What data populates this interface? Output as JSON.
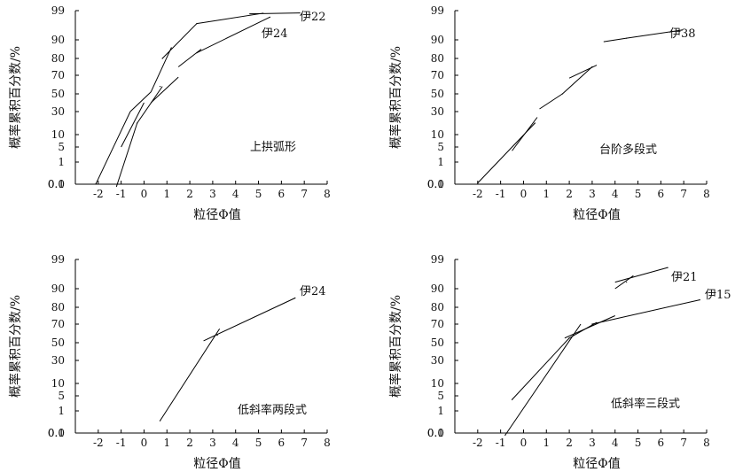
{
  "chart_data": [
    {
      "type": "line",
      "caption": "上拱弧形",
      "xlabel": "粒径Φ值",
      "ylabel": "概率累积百分数/%",
      "xlim": [
        -3,
        8
      ],
      "xticks": [
        "-2",
        "-1",
        "0",
        "1",
        "2",
        "3",
        "4",
        "5",
        "6",
        "7",
        "8"
      ],
      "yticks": [
        "99",
        "90",
        "80",
        "70",
        "50",
        "30",
        "10",
        "5",
        "1",
        "0.1",
        "0.0"
      ],
      "series": [
        {
          "name": "伊22",
          "x": [
            -2.1,
            0.8,
            2.3,
            5.2,
            6.8
          ],
          "y": [
            0.12,
            80,
            95,
            98.2,
            98.3
          ],
          "segments": [
            [
              -2.1,
              0.12,
              -0.6,
              30
            ],
            [
              -0.6,
              30,
              0.3,
              52
            ],
            [
              0.3,
              52,
              1.2,
              86
            ],
            [
              0.8,
              80,
              2.3,
              95
            ],
            [
              2.3,
              95,
              5.2,
              98.2
            ],
            [
              4.6,
              98,
              6.8,
              98.3
            ]
          ]
        },
        {
          "name": "伊24",
          "x": [
            -1.2,
            -0.3,
            0.7,
            2.3,
            5.5
          ],
          "y": [
            0.08,
            20,
            58,
            83,
            97
          ],
          "segments": [
            [
              -1.2,
              0.08,
              -0.3,
              20
            ],
            [
              -1.0,
              5,
              0.0,
              40
            ],
            [
              -0.3,
              20,
              0.8,
              58
            ],
            [
              0.3,
              40,
              1.5,
              68
            ],
            [
              1.5,
              75,
              2.5,
              85
            ],
            [
              2.3,
              83,
              5.5,
              97
            ]
          ]
        }
      ]
    },
    {
      "type": "line",
      "caption": "台阶多段式",
      "xlabel": "粒径Φ值",
      "ylabel": "概率累积百分数/%",
      "xlim": [
        -3,
        8
      ],
      "xticks": [
        "-2",
        "-1",
        "0",
        "1",
        "2",
        "3",
        "4",
        "5",
        "6",
        "7",
        "8"
      ],
      "yticks": [
        "99",
        "90",
        "80",
        "70",
        "50",
        "30",
        "10",
        "5",
        "1",
        "0.1",
        "0.0"
      ],
      "series": [
        {
          "name": "伊38",
          "x": [
            -2.0,
            0.5,
            1.7,
            3.0,
            4.5,
            6.9
          ],
          "y": [
            0.15,
            20,
            50,
            75,
            90.5,
            93
          ],
          "segments": [
            [
              -2.0,
              0.15,
              0.5,
              20
            ],
            [
              -0.5,
              4,
              0.6,
              25
            ],
            [
              0.7,
              33,
              1.7,
              50
            ],
            [
              1.7,
              50,
              3.0,
              75
            ],
            [
              2.0,
              67,
              3.2,
              76
            ],
            [
              3.5,
              89,
              4.5,
              90.5
            ],
            [
              4.5,
              90.5,
              6.9,
              93
            ]
          ]
        }
      ]
    },
    {
      "type": "line",
      "caption": "低斜率两段式",
      "xlabel": "粒径Φ值",
      "ylabel": "概率累积百分数/%",
      "xlim": [
        -3,
        8
      ],
      "xticks": [
        "-2",
        "-1",
        "0",
        "1",
        "2",
        "3",
        "4",
        "5",
        "6",
        "7",
        "8"
      ],
      "yticks": [
        "99",
        "90",
        "80",
        "70",
        "50",
        "30",
        "10",
        "5",
        "1",
        "0.1",
        "0.0"
      ],
      "series": [
        {
          "name": "伊24",
          "x": [
            0.7,
            3.2,
            6.6
          ],
          "y": [
            0.6,
            58,
            85
          ],
          "segments": [
            [
              0.7,
              0.6,
              3.3,
              65
            ],
            [
              2.6,
              52,
              6.6,
              85
            ]
          ]
        }
      ]
    },
    {
      "type": "line",
      "caption": "低斜率三段式",
      "xlabel": "粒径Φ值",
      "ylabel": "概率累积百分数/%",
      "xlim": [
        -3,
        8
      ],
      "xticks": [
        "-2",
        "-1",
        "0",
        "1",
        "2",
        "3",
        "4",
        "5",
        "6",
        "7",
        "8"
      ],
      "yticks": [
        "99",
        "90",
        "80",
        "70",
        "50",
        "30",
        "10",
        "5",
        "1",
        "0.1",
        "0.0"
      ],
      "series": [
        {
          "name": "伊21",
          "x": [
            -0.8,
            2.0,
            4.5,
            6.3
          ],
          "y": [
            0.08,
            55,
            92,
            96.5
          ],
          "segments": [
            [
              -0.8,
              0.08,
              2.5,
              70
            ],
            [
              1.8,
              55,
              4.0,
              75
            ],
            [
              4.0,
              90,
              4.8,
              94
            ],
            [
              4.0,
              92,
              6.3,
              96.5
            ]
          ]
        },
        {
          "name": "伊15",
          "x": [
            -0.5,
            2.0,
            3.0,
            7.7
          ],
          "y": [
            4,
            55,
            70,
            84
          ],
          "segments": [
            [
              -0.5,
              4,
              2.0,
              55
            ],
            [
              2.0,
              55,
              3.2,
              71
            ],
            [
              3.0,
              70,
              7.7,
              84
            ]
          ]
        }
      ]
    }
  ]
}
